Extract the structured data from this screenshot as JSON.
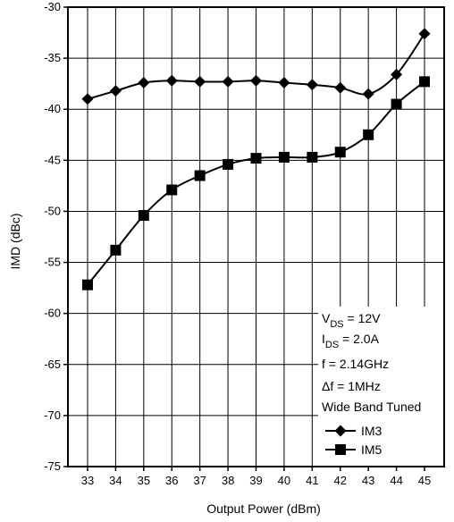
{
  "chart_data": {
    "type": "line",
    "title": "",
    "xlabel": "Output Power (dBm)",
    "ylabel": "IMD (dBc)",
    "x": [
      33,
      34,
      35,
      36,
      37,
      38,
      39,
      40,
      41,
      42,
      43,
      44,
      45
    ],
    "xlim": [
      32.3,
      45.7
    ],
    "ylim": [
      -75,
      -30
    ],
    "yticks": [
      -30,
      -35,
      -40,
      -45,
      -50,
      -55,
      -60,
      -65,
      -70,
      -75
    ],
    "grid": true,
    "series": [
      {
        "name": "IM3",
        "marker": "diamond",
        "values": [
          -39.0,
          -38.2,
          -37.4,
          -37.2,
          -37.3,
          -37.3,
          -37.2,
          -37.4,
          -37.6,
          -37.9,
          -38.5,
          -36.6,
          -32.6
        ]
      },
      {
        "name": "IM5",
        "marker": "square",
        "values": [
          -57.2,
          -53.8,
          -50.4,
          -47.9,
          -46.5,
          -45.4,
          -44.8,
          -44.7,
          -44.7,
          -44.2,
          -42.5,
          -39.5,
          -37.3
        ]
      }
    ],
    "annotation_lines": [
      {
        "main": "V",
        "sub": "DS",
        "rest": " = 12V"
      },
      {
        "main": "I",
        "sub": "DS",
        "rest": " = 2.0A"
      },
      {
        "main": "f = 2.14GHz",
        "sub": "",
        "rest": ""
      },
      {
        "main": "Δf = 1MHz",
        "sub": "",
        "rest": ""
      },
      {
        "main": "Wide Band Tuned",
        "sub": "",
        "rest": ""
      }
    ],
    "legend_position": "bottom-right"
  }
}
